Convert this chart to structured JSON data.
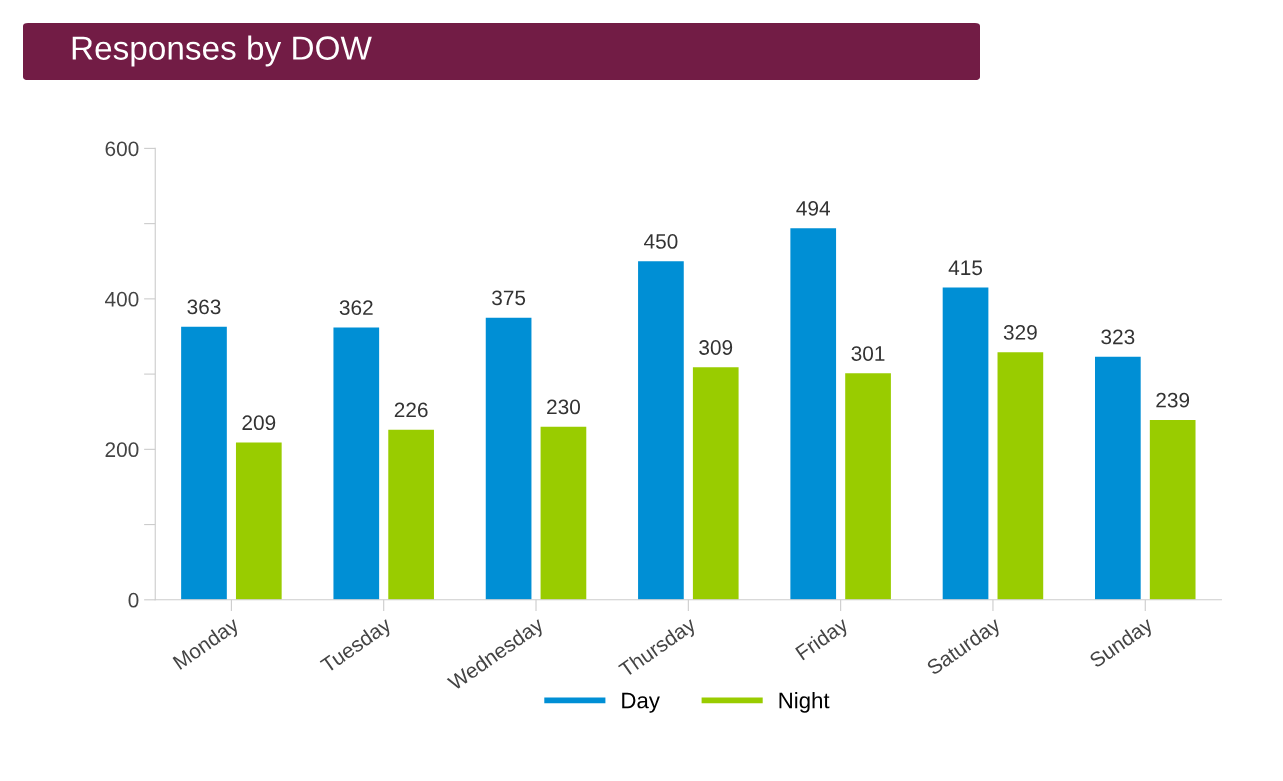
{
  "chart_data": {
    "type": "bar",
    "title": "Responses by DOW",
    "categories": [
      "Monday",
      "Tuesday",
      "Wednesday",
      "Thursday",
      "Friday",
      "Saturday",
      "Sunday"
    ],
    "series": [
      {
        "name": "Day",
        "color": "#008fd5",
        "values": [
          363,
          362,
          375,
          450,
          494,
          415,
          323
        ]
      },
      {
        "name": "Night",
        "color": "#99cc00",
        "values": [
          209,
          226,
          230,
          309,
          301,
          329,
          239
        ]
      }
    ],
    "ylim": [
      0,
      600
    ],
    "yticks": [
      0,
      {
        "value": 100,
        "label": null
      },
      200,
      {
        "value": 300,
        "label": null
      },
      400,
      {
        "value": 500,
        "label": null
      },
      600
    ],
    "data_labels": true,
    "grid": false,
    "legend": "bottom"
  }
}
